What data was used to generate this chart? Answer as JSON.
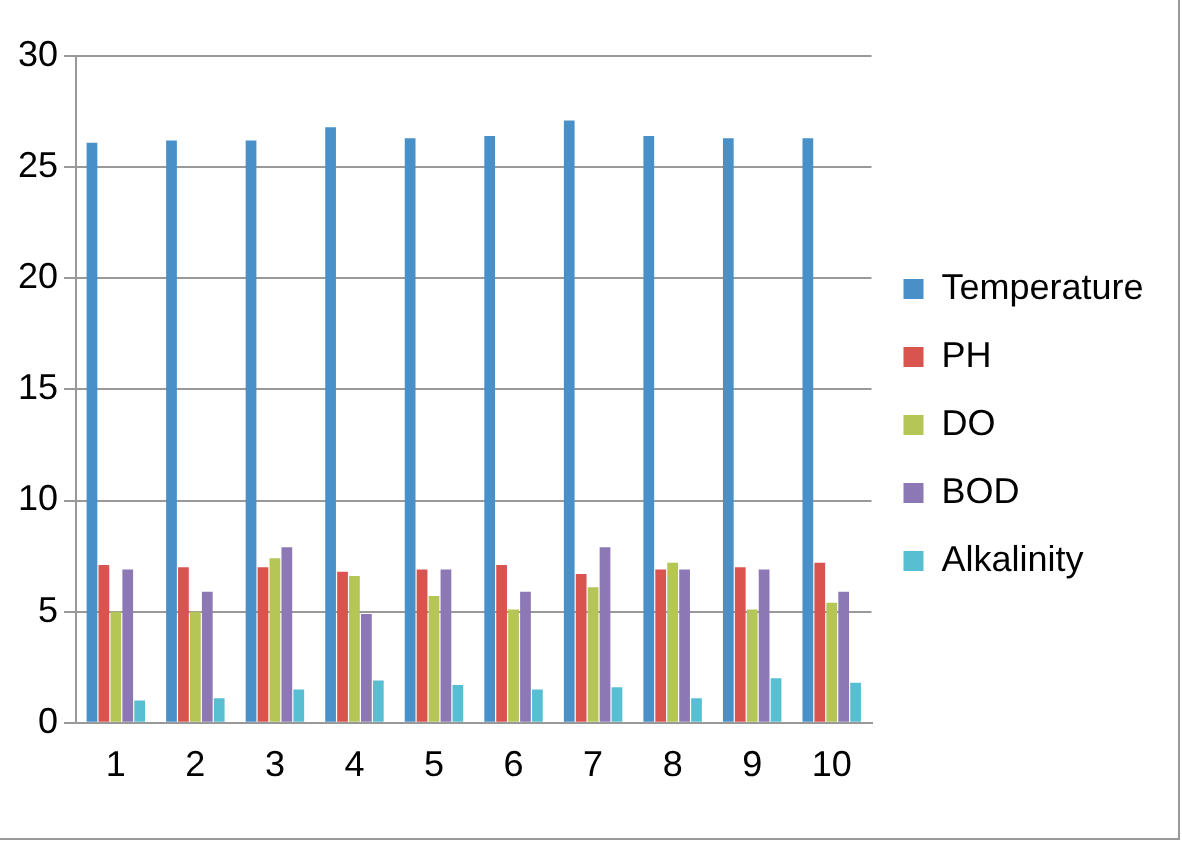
{
  "chart_data": {
    "type": "bar",
    "categories": [
      "1",
      "2",
      "3",
      "4",
      "5",
      "6",
      "7",
      "8",
      "9",
      "10"
    ],
    "series": [
      {
        "name": "Temperature",
        "color": "#4a90c8",
        "values": [
          26.1,
          26.2,
          26.2,
          26.8,
          26.3,
          26.4,
          27.1,
          26.4,
          26.3,
          26.3
        ]
      },
      {
        "name": "PH",
        "color": "#d9534f",
        "values": [
          7.1,
          7.0,
          7.0,
          6.8,
          6.9,
          7.1,
          6.7,
          6.9,
          7.0,
          7.2
        ]
      },
      {
        "name": "DO",
        "color": "#b5c556",
        "values": [
          5.0,
          5.0,
          7.4,
          6.6,
          5.7,
          5.1,
          6.1,
          7.2,
          5.1,
          5.4
        ]
      },
      {
        "name": "BOD",
        "color": "#8b78b4",
        "values": [
          6.9,
          5.9,
          7.9,
          4.9,
          6.9,
          5.9,
          7.9,
          6.9,
          6.9,
          5.9
        ]
      },
      {
        "name": "Alkalinity",
        "color": "#58bfd3",
        "values": [
          1.0,
          1.1,
          1.5,
          1.9,
          1.7,
          1.5,
          1.6,
          1.1,
          2.0,
          1.8
        ]
      }
    ],
    "ylim": [
      0,
      30
    ],
    "yticks": [
      0,
      5,
      10,
      15,
      20,
      25,
      30
    ],
    "grid": "y",
    "legend": "right"
  }
}
